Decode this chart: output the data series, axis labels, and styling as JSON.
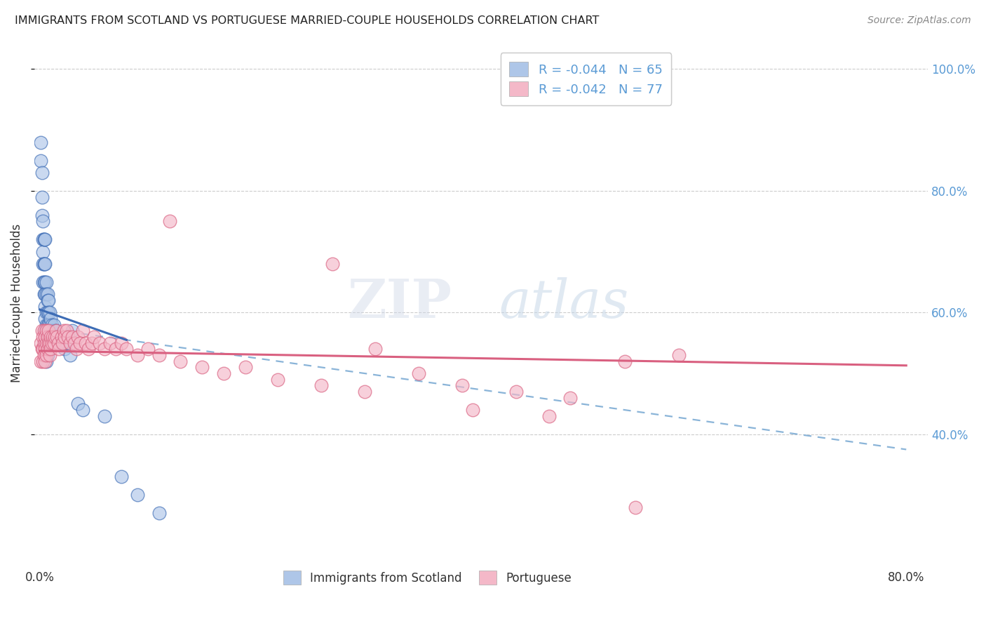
{
  "title": "IMMIGRANTS FROM SCOTLAND VS PORTUGUESE MARRIED-COUPLE HOUSEHOLDS CORRELATION CHART",
  "source": "Source: ZipAtlas.com",
  "ylabel": "Married-couple Households",
  "legend1_r": "R = -0.044",
  "legend1_n": "N = 65",
  "legend2_r": "R = -0.042",
  "legend2_n": "N = 77",
  "legend_label1": "Immigrants from Scotland",
  "legend_label2": "Portuguese",
  "blue_color": "#aec6e8",
  "blue_line_color": "#3d6cb5",
  "pink_color": "#f4b8c8",
  "pink_line_color": "#d96080",
  "dashed_line_color": "#8ab4d8",
  "title_color": "#222222",
  "right_axis_color": "#5b9bd5",
  "scatter_blue": {
    "x": [
      0.001,
      0.001,
      0.002,
      0.002,
      0.002,
      0.003,
      0.003,
      0.003,
      0.003,
      0.003,
      0.004,
      0.004,
      0.004,
      0.004,
      0.004,
      0.004,
      0.005,
      0.005,
      0.005,
      0.005,
      0.005,
      0.005,
      0.005,
      0.005,
      0.006,
      0.006,
      0.006,
      0.006,
      0.006,
      0.006,
      0.006,
      0.006,
      0.007,
      0.007,
      0.007,
      0.007,
      0.007,
      0.007,
      0.007,
      0.008,
      0.008,
      0.008,
      0.008,
      0.008,
      0.009,
      0.009,
      0.009,
      0.01,
      0.01,
      0.011,
      0.012,
      0.013,
      0.015,
      0.017,
      0.02,
      0.023,
      0.025,
      0.028,
      0.03,
      0.035,
      0.04,
      0.06,
      0.075,
      0.09,
      0.11
    ],
    "y": [
      0.88,
      0.85,
      0.83,
      0.79,
      0.76,
      0.75,
      0.72,
      0.7,
      0.68,
      0.65,
      0.72,
      0.68,
      0.65,
      0.63,
      0.72,
      0.68,
      0.68,
      0.65,
      0.63,
      0.61,
      0.59,
      0.57,
      0.55,
      0.72,
      0.65,
      0.63,
      0.6,
      0.58,
      0.57,
      0.55,
      0.54,
      0.52,
      0.63,
      0.62,
      0.6,
      0.58,
      0.56,
      0.55,
      0.53,
      0.62,
      0.6,
      0.58,
      0.56,
      0.54,
      0.6,
      0.58,
      0.56,
      0.59,
      0.57,
      0.58,
      0.57,
      0.58,
      0.57,
      0.56,
      0.55,
      0.54,
      0.55,
      0.53,
      0.57,
      0.45,
      0.44,
      0.43,
      0.33,
      0.3,
      0.27
    ]
  },
  "scatter_pink": {
    "x": [
      0.001,
      0.001,
      0.002,
      0.002,
      0.003,
      0.003,
      0.003,
      0.004,
      0.004,
      0.004,
      0.005,
      0.005,
      0.005,
      0.006,
      0.006,
      0.006,
      0.007,
      0.007,
      0.008,
      0.008,
      0.009,
      0.009,
      0.01,
      0.01,
      0.011,
      0.012,
      0.013,
      0.014,
      0.015,
      0.016,
      0.017,
      0.018,
      0.02,
      0.021,
      0.022,
      0.023,
      0.025,
      0.026,
      0.028,
      0.03,
      0.032,
      0.034,
      0.035,
      0.037,
      0.04,
      0.042,
      0.045,
      0.048,
      0.05,
      0.055,
      0.06,
      0.065,
      0.07,
      0.075,
      0.08,
      0.09,
      0.1,
      0.11,
      0.13,
      0.15,
      0.17,
      0.19,
      0.22,
      0.26,
      0.3,
      0.35,
      0.39,
      0.44,
      0.49,
      0.54,
      0.59,
      0.12,
      0.27,
      0.31,
      0.4,
      0.47,
      0.55
    ],
    "y": [
      0.55,
      0.52,
      0.57,
      0.54,
      0.56,
      0.54,
      0.52,
      0.57,
      0.55,
      0.53,
      0.56,
      0.54,
      0.52,
      0.57,
      0.55,
      0.53,
      0.56,
      0.54,
      0.57,
      0.55,
      0.55,
      0.53,
      0.56,
      0.54,
      0.55,
      0.56,
      0.55,
      0.56,
      0.57,
      0.56,
      0.55,
      0.54,
      0.56,
      0.55,
      0.57,
      0.56,
      0.57,
      0.56,
      0.55,
      0.56,
      0.55,
      0.54,
      0.56,
      0.55,
      0.57,
      0.55,
      0.54,
      0.55,
      0.56,
      0.55,
      0.54,
      0.55,
      0.54,
      0.55,
      0.54,
      0.53,
      0.54,
      0.53,
      0.52,
      0.51,
      0.5,
      0.51,
      0.49,
      0.48,
      0.47,
      0.5,
      0.48,
      0.47,
      0.46,
      0.52,
      0.53,
      0.75,
      0.68,
      0.54,
      0.44,
      0.43,
      0.28
    ]
  },
  "xlim": [
    -0.005,
    0.82
  ],
  "ylim": [
    0.18,
    1.05
  ],
  "ytick_positions": [
    0.4,
    0.6,
    0.8,
    1.0
  ],
  "ytick_labels": [
    "40.0%",
    "60.0%",
    "80.0%",
    "100.0%"
  ],
  "grid_color": "#cccccc",
  "background_color": "#ffffff"
}
